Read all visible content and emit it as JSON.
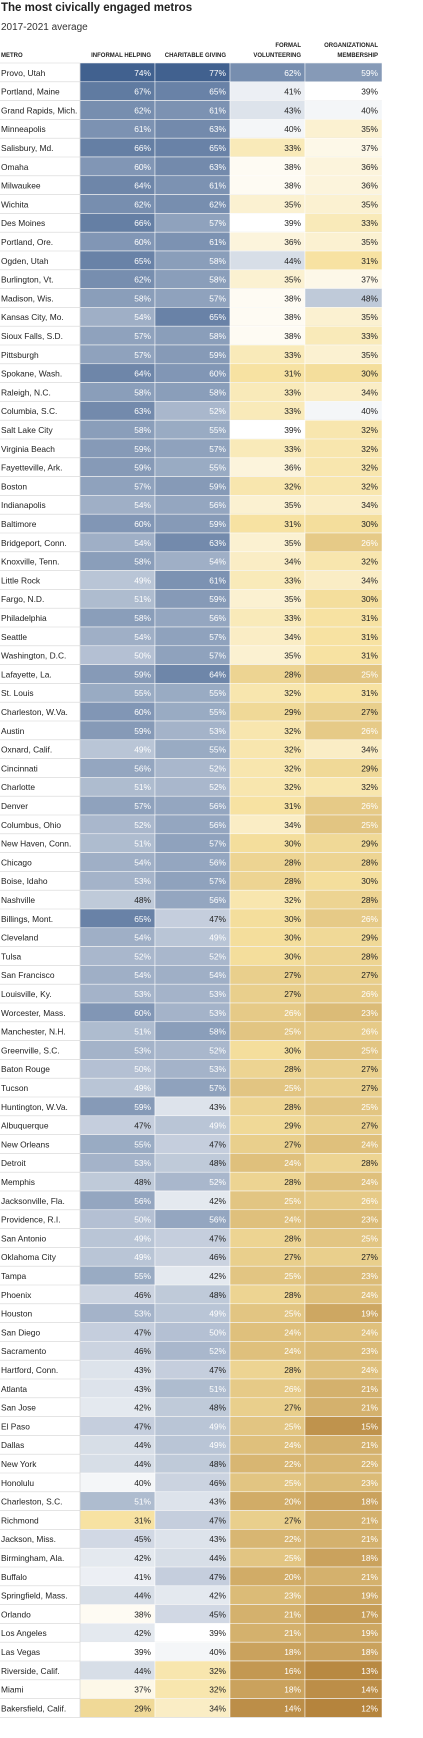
{
  "title": "The most civically engaged metros",
  "subtitle": "2017-2021 average",
  "chart_data": {
    "type": "table",
    "title": "The most civically engaged metros",
    "subtitle": "2017-2021 average",
    "columns": [
      {
        "label": "METRO"
      },
      {
        "label": "INFORMAL HELPING"
      },
      {
        "label": "CHARITABLE GIVING"
      },
      {
        "label": "FORMAL",
        "label2": "VOLUNTEERING"
      },
      {
        "label": "ORGANIZATIONAL",
        "label2": "MEMBERSHIP"
      }
    ],
    "rows": [
      {
        "metro": "Provo, Utah",
        "values": [
          "74%",
          "77%",
          "62%",
          "59%"
        ]
      },
      {
        "metro": "Portland, Maine",
        "values": [
          "67%",
          "65%",
          "41%",
          "39%"
        ]
      },
      {
        "metro": "Grand Rapids, Mich.",
        "values": [
          "62%",
          "61%",
          "43%",
          "40%"
        ]
      },
      {
        "metro": "Minneapolis",
        "values": [
          "61%",
          "63%",
          "40%",
          "35%"
        ]
      },
      {
        "metro": "Salisbury, Md.",
        "values": [
          "66%",
          "65%",
          "33%",
          "37%"
        ]
      },
      {
        "metro": "Omaha",
        "values": [
          "60%",
          "63%",
          "38%",
          "36%"
        ]
      },
      {
        "metro": "Milwaukee",
        "values": [
          "64%",
          "61%",
          "38%",
          "36%"
        ]
      },
      {
        "metro": "Wichita",
        "values": [
          "62%",
          "62%",
          "35%",
          "35%"
        ]
      },
      {
        "metro": "Des Moines",
        "values": [
          "66%",
          "57%",
          "39%",
          "33%"
        ]
      },
      {
        "metro": "Portland, Ore.",
        "values": [
          "60%",
          "61%",
          "36%",
          "35%"
        ]
      },
      {
        "metro": "Ogden, Utah",
        "values": [
          "65%",
          "58%",
          "44%",
          "31%"
        ]
      },
      {
        "metro": "Burlington, Vt.",
        "values": [
          "62%",
          "58%",
          "35%",
          "37%"
        ]
      },
      {
        "metro": "Madison, Wis.",
        "values": [
          "58%",
          "57%",
          "38%",
          "48%"
        ]
      },
      {
        "metro": "Kansas City, Mo.",
        "values": [
          "54%",
          "65%",
          "38%",
          "35%"
        ]
      },
      {
        "metro": "Sioux Falls, S.D.",
        "values": [
          "57%",
          "58%",
          "38%",
          "33%"
        ]
      },
      {
        "metro": "Pittsburgh",
        "values": [
          "57%",
          "59%",
          "33%",
          "35%"
        ]
      },
      {
        "metro": "Spokane, Wash.",
        "values": [
          "64%",
          "60%",
          "31%",
          "30%"
        ]
      },
      {
        "metro": "Raleigh, N.C.",
        "values": [
          "58%",
          "58%",
          "33%",
          "34%"
        ]
      },
      {
        "metro": "Columbia, S.C.",
        "values": [
          "63%",
          "52%",
          "33%",
          "40%"
        ]
      },
      {
        "metro": "Salt Lake City",
        "values": [
          "58%",
          "55%",
          "39%",
          "32%"
        ]
      },
      {
        "metro": "Virginia Beach",
        "values": [
          "59%",
          "57%",
          "33%",
          "32%"
        ]
      },
      {
        "metro": "Fayetteville, Ark.",
        "values": [
          "59%",
          "55%",
          "36%",
          "32%"
        ]
      },
      {
        "metro": "Boston",
        "values": [
          "57%",
          "59%",
          "32%",
          "32%"
        ]
      },
      {
        "metro": "Indianapolis",
        "values": [
          "54%",
          "56%",
          "35%",
          "34%"
        ]
      },
      {
        "metro": "Baltimore",
        "values": [
          "60%",
          "59%",
          "31%",
          "30%"
        ]
      },
      {
        "metro": "Bridgeport, Conn.",
        "values": [
          "54%",
          "63%",
          "35%",
          "26%"
        ]
      },
      {
        "metro": "Knoxville, Tenn.",
        "values": [
          "58%",
          "54%",
          "34%",
          "32%"
        ]
      },
      {
        "metro": "Little Rock",
        "values": [
          "49%",
          "61%",
          "33%",
          "34%"
        ]
      },
      {
        "metro": "Fargo, N.D.",
        "values": [
          "51%",
          "59%",
          "35%",
          "30%"
        ]
      },
      {
        "metro": "Philadelphia",
        "values": [
          "58%",
          "56%",
          "33%",
          "31%"
        ]
      },
      {
        "metro": "Seattle",
        "values": [
          "54%",
          "57%",
          "34%",
          "31%"
        ]
      },
      {
        "metro": "Washington, D.C.",
        "values": [
          "50%",
          "57%",
          "35%",
          "31%"
        ]
      },
      {
        "metro": "Lafayette, La.",
        "values": [
          "59%",
          "64%",
          "28%",
          "25%"
        ]
      },
      {
        "metro": "St. Louis",
        "values": [
          "55%",
          "55%",
          "32%",
          "31%"
        ]
      },
      {
        "metro": "Charleston, W.Va.",
        "values": [
          "60%",
          "55%",
          "29%",
          "27%"
        ]
      },
      {
        "metro": "Austin",
        "values": [
          "59%",
          "53%",
          "32%",
          "26%"
        ]
      },
      {
        "metro": "Oxnard, Calif.",
        "values": [
          "49%",
          "55%",
          "32%",
          "34%"
        ]
      },
      {
        "metro": "Cincinnati",
        "values": [
          "56%",
          "52%",
          "32%",
          "29%"
        ]
      },
      {
        "metro": "Charlotte",
        "values": [
          "51%",
          "52%",
          "32%",
          "32%"
        ]
      },
      {
        "metro": "Denver",
        "values": [
          "57%",
          "56%",
          "31%",
          "26%"
        ]
      },
      {
        "metro": "Columbus, Ohio",
        "values": [
          "52%",
          "56%",
          "34%",
          "25%"
        ]
      },
      {
        "metro": "New Haven, Conn.",
        "values": [
          "51%",
          "57%",
          "30%",
          "29%"
        ]
      },
      {
        "metro": "Chicago",
        "values": [
          "54%",
          "56%",
          "28%",
          "28%"
        ]
      },
      {
        "metro": "Boise, Idaho",
        "values": [
          "53%",
          "57%",
          "28%",
          "30%"
        ]
      },
      {
        "metro": "Nashville",
        "values": [
          "48%",
          "56%",
          "32%",
          "28%"
        ]
      },
      {
        "metro": "Billings, Mont.",
        "values": [
          "65%",
          "47%",
          "30%",
          "26%"
        ]
      },
      {
        "metro": "Cleveland",
        "values": [
          "54%",
          "49%",
          "30%",
          "29%"
        ]
      },
      {
        "metro": "Tulsa",
        "values": [
          "52%",
          "52%",
          "30%",
          "28%"
        ]
      },
      {
        "metro": "San Francisco",
        "values": [
          "54%",
          "54%",
          "27%",
          "27%"
        ]
      },
      {
        "metro": "Louisville, Ky.",
        "values": [
          "53%",
          "53%",
          "27%",
          "26%"
        ]
      },
      {
        "metro": "Worcester, Mass.",
        "values": [
          "60%",
          "53%",
          "26%",
          "23%"
        ]
      },
      {
        "metro": "Manchester, N.H.",
        "values": [
          "51%",
          "58%",
          "25%",
          "26%"
        ]
      },
      {
        "metro": "Greenville, S.C.",
        "values": [
          "53%",
          "52%",
          "30%",
          "25%"
        ]
      },
      {
        "metro": "Baton Rouge",
        "values": [
          "50%",
          "53%",
          "28%",
          "27%"
        ]
      },
      {
        "metro": "Tucson",
        "values": [
          "49%",
          "57%",
          "25%",
          "27%"
        ]
      },
      {
        "metro": "Huntington, W.Va.",
        "values": [
          "59%",
          "43%",
          "28%",
          "25%"
        ]
      },
      {
        "metro": "Albuquerque",
        "values": [
          "47%",
          "49%",
          "29%",
          "27%"
        ]
      },
      {
        "metro": "New Orleans",
        "values": [
          "55%",
          "47%",
          "27%",
          "24%"
        ]
      },
      {
        "metro": "Detroit",
        "values": [
          "53%",
          "48%",
          "24%",
          "28%"
        ]
      },
      {
        "metro": "Memphis",
        "values": [
          "48%",
          "52%",
          "28%",
          "24%"
        ]
      },
      {
        "metro": "Jacksonville, Fla.",
        "values": [
          "56%",
          "42%",
          "25%",
          "26%"
        ]
      },
      {
        "metro": "Providence, R.I.",
        "values": [
          "50%",
          "56%",
          "24%",
          "23%"
        ]
      },
      {
        "metro": "San Antonio",
        "values": [
          "49%",
          "47%",
          "28%",
          "25%"
        ]
      },
      {
        "metro": "Oklahoma City",
        "values": [
          "49%",
          "46%",
          "27%",
          "27%"
        ]
      },
      {
        "metro": "Tampa",
        "values": [
          "55%",
          "42%",
          "25%",
          "23%"
        ]
      },
      {
        "metro": "Phoenix",
        "values": [
          "46%",
          "48%",
          "28%",
          "24%"
        ]
      },
      {
        "metro": "Houston",
        "values": [
          "53%",
          "49%",
          "25%",
          "19%"
        ]
      },
      {
        "metro": "San Diego",
        "values": [
          "47%",
          "50%",
          "24%",
          "24%"
        ]
      },
      {
        "metro": "Sacramento",
        "values": [
          "46%",
          "52%",
          "24%",
          "23%"
        ]
      },
      {
        "metro": "Hartford, Conn.",
        "values": [
          "43%",
          "47%",
          "28%",
          "24%"
        ]
      },
      {
        "metro": "Atlanta",
        "values": [
          "43%",
          "51%",
          "26%",
          "21%"
        ]
      },
      {
        "metro": "San Jose",
        "values": [
          "42%",
          "48%",
          "27%",
          "21%"
        ]
      },
      {
        "metro": "El Paso",
        "values": [
          "47%",
          "49%",
          "25%",
          "15%"
        ]
      },
      {
        "metro": "Dallas",
        "values": [
          "44%",
          "49%",
          "24%",
          "21%"
        ]
      },
      {
        "metro": "New York",
        "values": [
          "44%",
          "48%",
          "22%",
          "22%"
        ]
      },
      {
        "metro": "Honolulu",
        "values": [
          "40%",
          "46%",
          "25%",
          "23%"
        ]
      },
      {
        "metro": "Charleston, S.C.",
        "values": [
          "51%",
          "43%",
          "20%",
          "18%"
        ]
      },
      {
        "metro": "Richmond",
        "values": [
          "31%",
          "47%",
          "27%",
          "21%"
        ]
      },
      {
        "metro": "Jackson, Miss.",
        "values": [
          "45%",
          "43%",
          "22%",
          "21%"
        ]
      },
      {
        "metro": "Birmingham, Ala.",
        "values": [
          "42%",
          "44%",
          "25%",
          "18%"
        ]
      },
      {
        "metro": "Buffalo",
        "values": [
          "41%",
          "47%",
          "20%",
          "21%"
        ]
      },
      {
        "metro": "Springfield, Mass.",
        "values": [
          "44%",
          "42%",
          "23%",
          "19%"
        ]
      },
      {
        "metro": "Orlando",
        "values": [
          "38%",
          "45%",
          "21%",
          "17%"
        ]
      },
      {
        "metro": "Los Angeles",
        "values": [
          "42%",
          "39%",
          "21%",
          "19%"
        ]
      },
      {
        "metro": "Las Vegas",
        "values": [
          "39%",
          "40%",
          "18%",
          "18%"
        ]
      },
      {
        "metro": "Riverside, Calif.",
        "values": [
          "44%",
          "32%",
          "16%",
          "13%"
        ]
      },
      {
        "metro": "Miami",
        "values": [
          "37%",
          "32%",
          "18%",
          "14%"
        ]
      },
      {
        "metro": "Bakersfield, Calif.",
        "values": [
          "29%",
          "34%",
          "14%",
          "12%"
        ]
      }
    ],
    "color_scale": {
      "low": "#f7e2a1",
      "mid": "#ffffff",
      "high": "#41618f",
      "deep_low": "#b5843d",
      "text_light": "#ffffff",
      "text_dark": "#222222"
    },
    "grid": true,
    "legend": "none"
  }
}
